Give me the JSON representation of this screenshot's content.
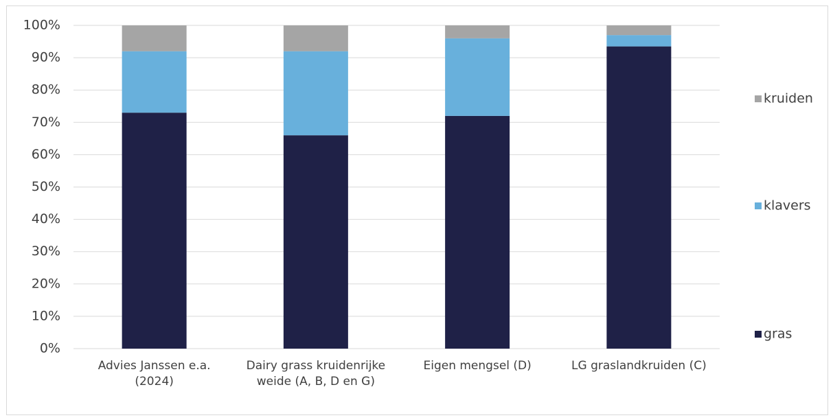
{
  "chart_data": {
    "type": "stacked_bar",
    "categories": [
      "Advies Janssen e.a. (2024)",
      "Dairy grass kruidenrijke weide (A, B, D en G)",
      "Eigen mengsel (D)",
      "LG graslandkruiden (C)"
    ],
    "series": [
      {
        "name": "gras",
        "color": "#1f2147",
        "values": [
          73,
          66,
          72,
          93.5
        ]
      },
      {
        "name": "klavers",
        "color": "#68b0dc",
        "values": [
          19,
          26,
          24,
          3.5
        ]
      },
      {
        "name": "kruiden",
        "color": "#a5a5a5",
        "values": [
          8,
          8,
          4,
          3
        ]
      }
    ],
    "ylim": [
      0,
      100
    ],
    "yticks": [
      {
        "value": 0,
        "label": "0%"
      },
      {
        "value": 10,
        "label": "10%"
      },
      {
        "value": 20,
        "label": "20%"
      },
      {
        "value": 30,
        "label": "30%"
      },
      {
        "value": 40,
        "label": "40%"
      },
      {
        "value": 50,
        "label": "50%"
      },
      {
        "value": 60,
        "label": "60%"
      },
      {
        "value": 70,
        "label": "70%"
      },
      {
        "value": 80,
        "label": "80%"
      },
      {
        "value": 90,
        "label": "90%"
      },
      {
        "value": 100,
        "label": "100%"
      }
    ],
    "grid": true,
    "legend": "right"
  }
}
